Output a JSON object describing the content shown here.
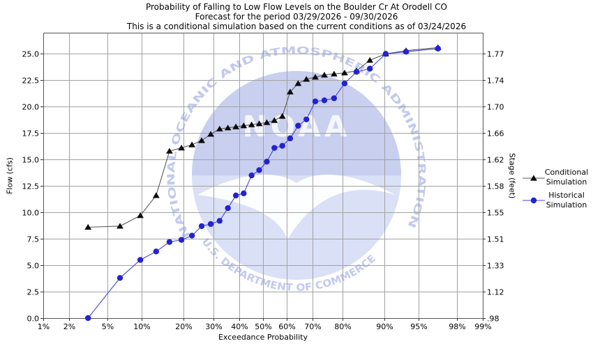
{
  "title": {
    "line1": "Probability of Falling to Low Flow Levels on the Boulder Cr At Orodell CO",
    "line2": "Forecast for the period 03/29/2026 - 09/30/2026",
    "line3": "This is a conditional simulation based on the current conditions as of 03/24/2026"
  },
  "axes": {
    "x_label": "Exceedance Probability",
    "y_left_label": "Flow (cfs)",
    "y_right_label": "Stage (feet)",
    "x_ticks": [
      {
        "p": 0.01,
        "label": "1%"
      },
      {
        "p": 0.02,
        "label": "2%"
      },
      {
        "p": 0.05,
        "label": "5%"
      },
      {
        "p": 0.1,
        "label": "10%"
      },
      {
        "p": 0.2,
        "label": "20%"
      },
      {
        "p": 0.3,
        "label": "30%"
      },
      {
        "p": 0.4,
        "label": "40%"
      },
      {
        "p": 0.5,
        "label": "50%"
      },
      {
        "p": 0.6,
        "label": "60%"
      },
      {
        "p": 0.7,
        "label": "70%"
      },
      {
        "p": 0.8,
        "label": "80%"
      },
      {
        "p": 0.9,
        "label": "90%"
      },
      {
        "p": 0.95,
        "label": "95%"
      },
      {
        "p": 0.98,
        "label": "98%"
      },
      {
        "p": 0.99,
        "label": "99%"
      }
    ],
    "y_left_ticks": [
      {
        "flow": 0,
        "label": "0.0"
      },
      {
        "flow": 2.5,
        "label": "2.5"
      },
      {
        "flow": 5,
        "label": "5.0"
      },
      {
        "flow": 7.5,
        "label": "7.5"
      },
      {
        "flow": 10,
        "label": "10.0"
      },
      {
        "flow": 12.5,
        "label": "12.5"
      },
      {
        "flow": 15,
        "label": "15.0"
      },
      {
        "flow": 17.5,
        "label": "17.5"
      },
      {
        "flow": 20,
        "label": "20.0"
      },
      {
        "flow": 22.5,
        "label": "22.5"
      },
      {
        "flow": 25,
        "label": "25.0"
      }
    ],
    "y_right_ticks": [
      {
        "flow": 0,
        "label": ".98"
      },
      {
        "flow": 2.5,
        "label": "1.12"
      },
      {
        "flow": 5,
        "label": "1.33"
      },
      {
        "flow": 7.5,
        "label": "1.51"
      },
      {
        "flow": 10,
        "label": "1.55"
      },
      {
        "flow": 12.5,
        "label": "1.58"
      },
      {
        "flow": 15,
        "label": "1.62"
      },
      {
        "flow": 17.5,
        "label": "1.66"
      },
      {
        "flow": 20,
        "label": "1.70"
      },
      {
        "flow": 22.5,
        "label": "1.74"
      },
      {
        "flow": 25,
        "label": "1.77"
      }
    ]
  },
  "legend": {
    "items": [
      {
        "line1": "Conditional",
        "line2": "Simulation",
        "marker": "triangle",
        "marker_color": "#0b0b0b",
        "line_color": "#5a5a5a"
      },
      {
        "line1": "Historical",
        "line2": "Simulation",
        "marker": "circle",
        "marker_color": "#2323cf",
        "line_color": "#4545da"
      }
    ]
  },
  "watermark": {
    "arc_top": "NATIONAL OCEANIC AND ATMOSPHERIC ADMINISTRATION",
    "arc_bottom": "U.S. DEPARTMENT OF COMMERCE",
    "emblem_text": "NOAA"
  },
  "colors": {
    "grid": "#a2a2a2",
    "frame": "#555555",
    "tick": "#333333",
    "watermark_circle": "#dae0f6",
    "watermark_sky": "#c9cfef",
    "watermark_arc_text": "#c3c9ee",
    "watermark_gull": "#ffffff",
    "watermark_letters": "#f4f6fd"
  },
  "chart_data": {
    "type": "line",
    "title": "Probability of Falling to Low Flow Levels on the Boulder Cr At Orodell CO",
    "subtitle1": "Forecast for the period 03/29/2026 - 09/30/2026",
    "subtitle2": "This is a conditional simulation based on the current conditions as of 03/24/2026",
    "xlabel": "Exceedance Probability",
    "ylabel_left": "Flow (cfs)",
    "ylabel_right": "Stage (feet)",
    "x_scale": "normal-probability (probit)",
    "x_units": "percent exceedance",
    "xlim_percent": [
      1,
      99
    ],
    "ylim_flow_cfs": [
      0,
      27
    ],
    "grid": true,
    "legend_position": "right",
    "x": [
      3.2,
      6.5,
      9.7,
      12.9,
      16.1,
      19.4,
      22.6,
      25.8,
      29.0,
      32.3,
      35.5,
      38.7,
      41.9,
      45.2,
      48.4,
      51.6,
      54.8,
      58.1,
      61.3,
      64.5,
      67.7,
      71.0,
      74.2,
      77.4,
      80.6,
      83.9,
      87.1,
      90.3,
      93.5,
      96.8
    ],
    "series": [
      {
        "name": "Conditional Simulation",
        "marker": "triangle",
        "marker_color": "#0b0b0b",
        "line_color": "#5a5a5a",
        "values": [
          8.6,
          8.7,
          9.7,
          11.6,
          15.8,
          16.1,
          16.4,
          16.8,
          17.4,
          17.9,
          18.0,
          18.1,
          18.2,
          18.3,
          18.4,
          18.5,
          18.7,
          19.1,
          21.4,
          22.2,
          22.6,
          22.8,
          23.0,
          23.1,
          23.2,
          23.4,
          24.4,
          25.0,
          25.3,
          25.6
        ]
      },
      {
        "name": "Historical Simulation",
        "marker": "circle",
        "marker_color": "#2323cf",
        "line_color": "#4545da",
        "values": [
          0.0,
          3.8,
          5.5,
          6.3,
          7.2,
          7.4,
          7.8,
          8.7,
          8.9,
          9.2,
          10.4,
          11.6,
          11.8,
          13.5,
          14.0,
          14.8,
          16.1,
          16.3,
          17.0,
          18.2,
          18.8,
          20.5,
          20.6,
          20.8,
          22.2,
          23.3,
          23.6,
          25.0,
          25.2,
          25.5
        ]
      }
    ]
  }
}
